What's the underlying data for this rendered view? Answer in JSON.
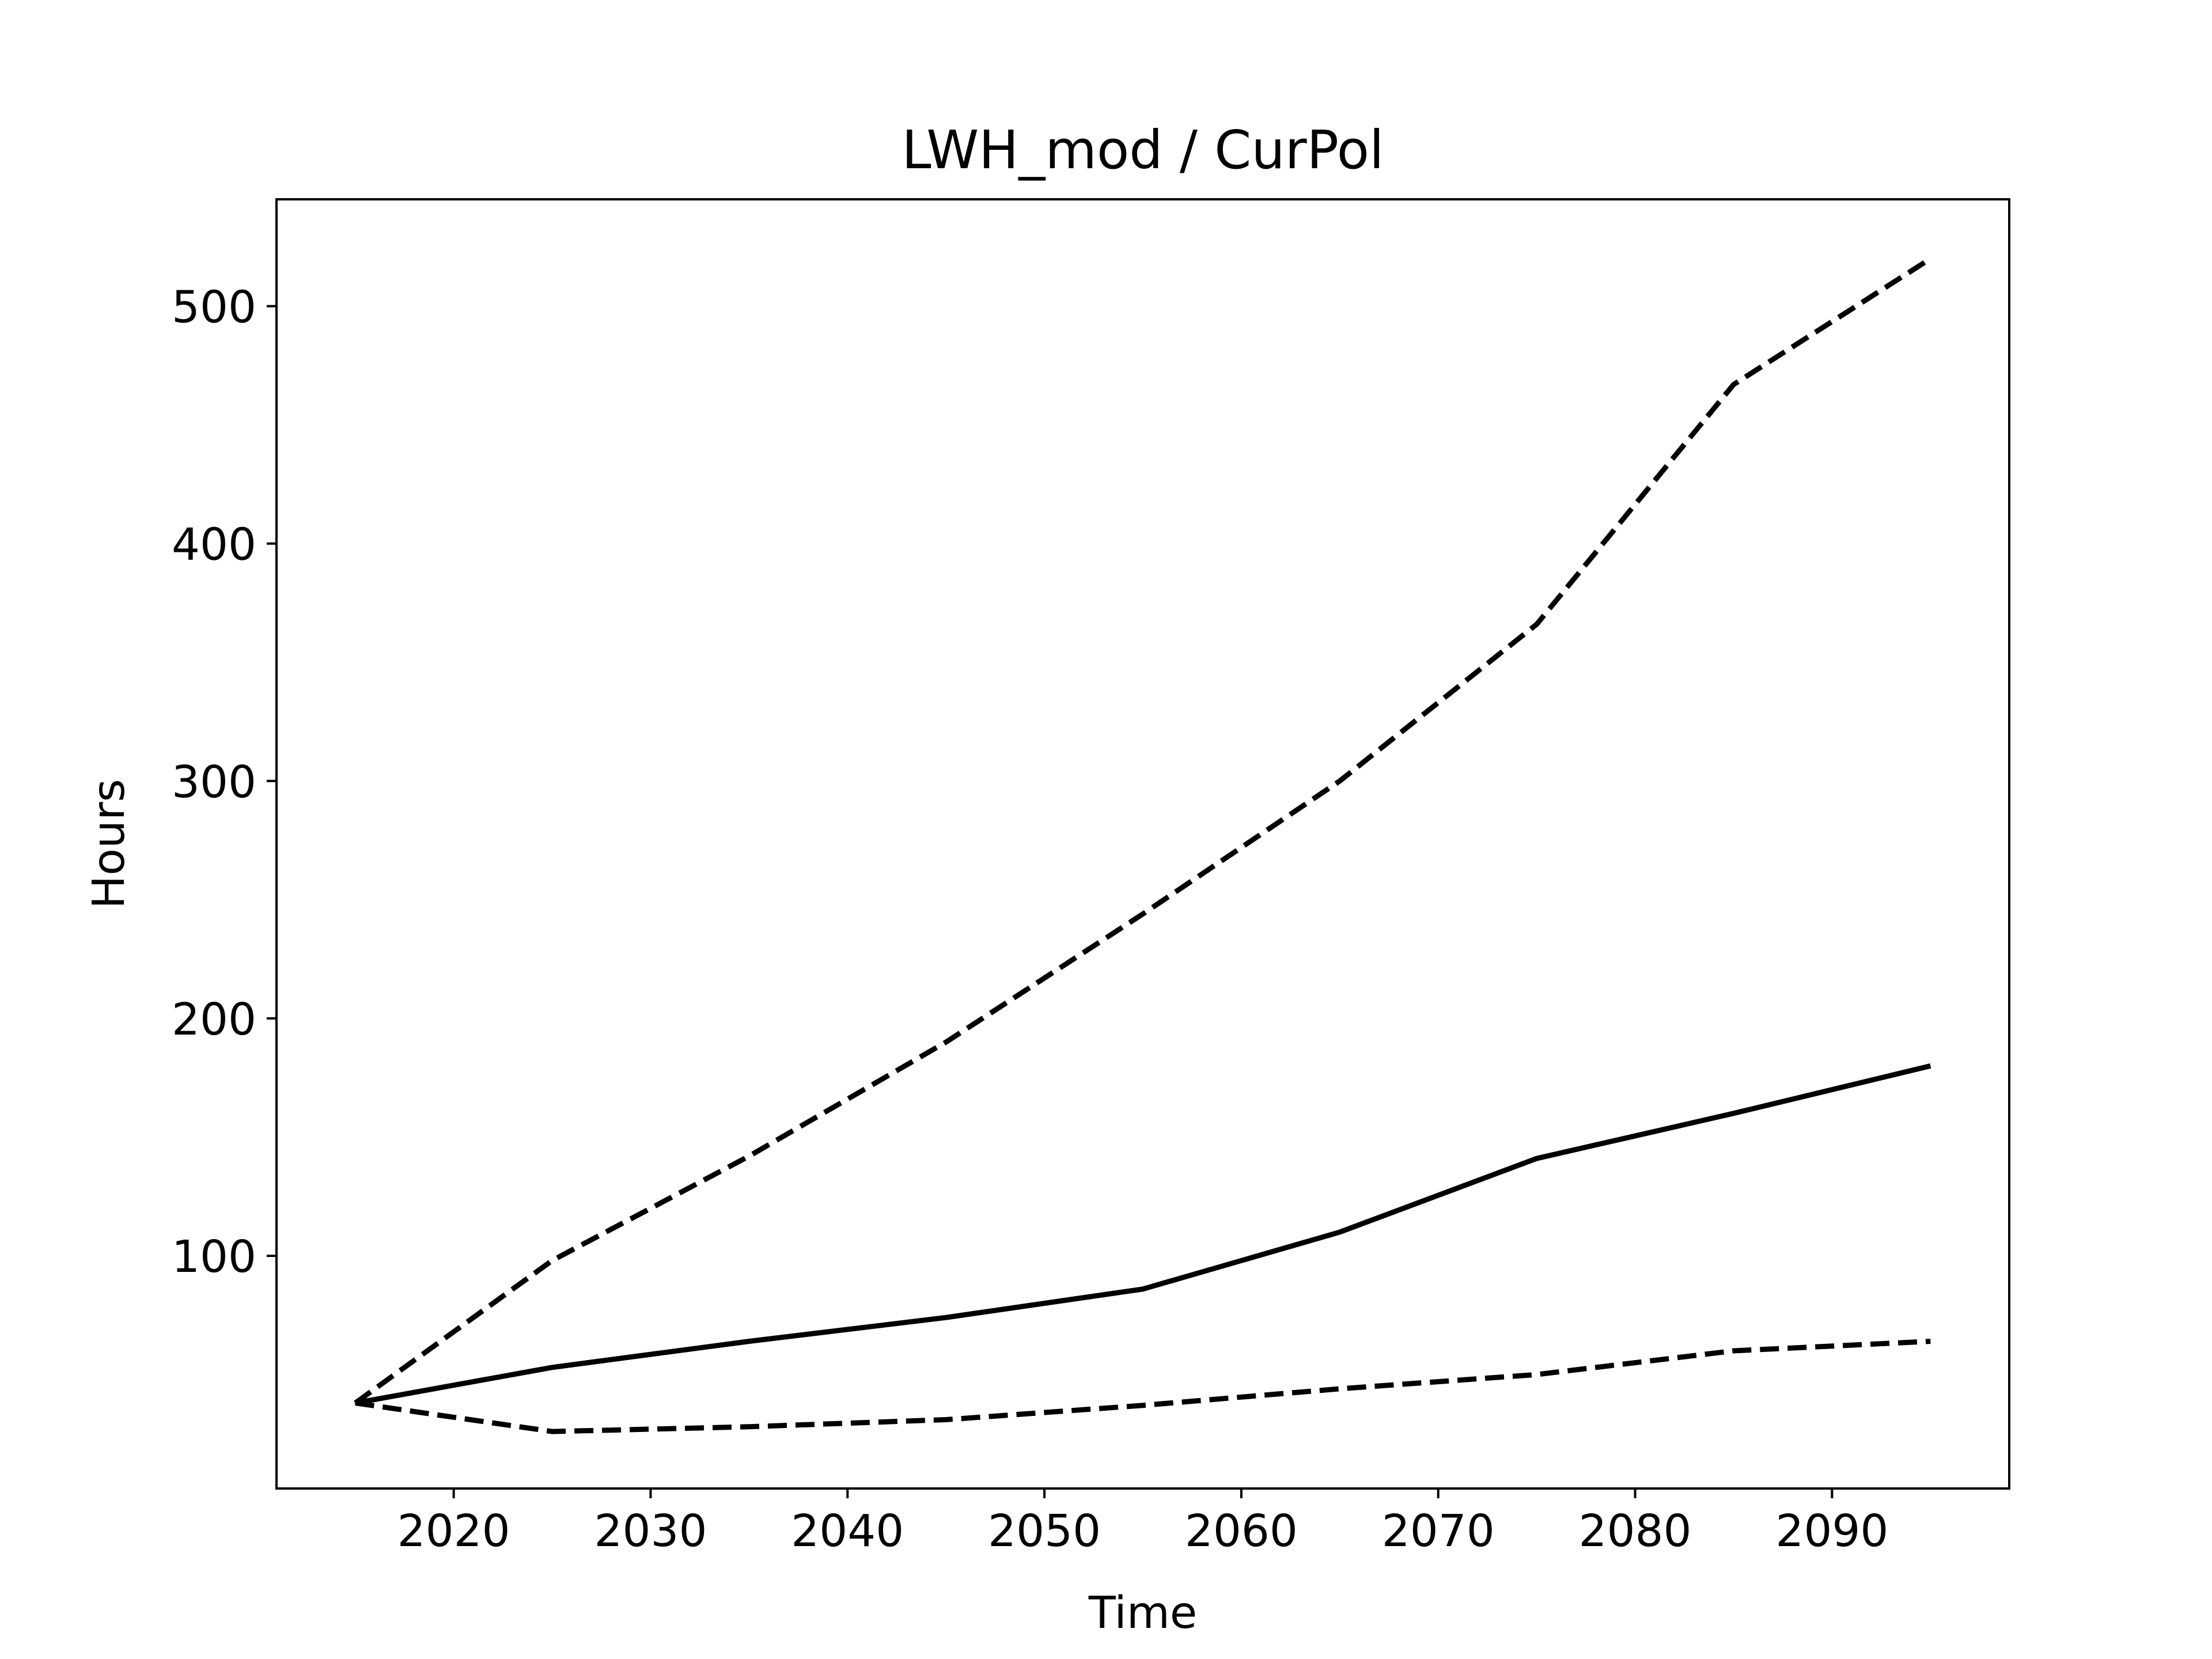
{
  "chart_data": {
    "type": "line",
    "title": "LWH_mod / CurPol",
    "xlabel": "Time",
    "ylabel": "Hours",
    "xlim": [
      2011,
      2099
    ],
    "ylim": [
      2,
      545
    ],
    "grid": false,
    "legend": "none",
    "x": [
      2015,
      2025,
      2035,
      2045,
      2055,
      2065,
      2075,
      2085,
      2095
    ],
    "xticks": [
      2020,
      2030,
      2040,
      2050,
      2060,
      2070,
      2080,
      2090
    ],
    "yticks": [
      100,
      200,
      300,
      400,
      500
    ],
    "series": [
      {
        "style": "dashed",
        "color": "#000000",
        "values": [
          38,
          98,
          142,
          190,
          244,
          300,
          366,
          467,
          520
        ]
      },
      {
        "style": "solid",
        "color": "#000000",
        "values": [
          38,
          53,
          64,
          74,
          86,
          110,
          141,
          160,
          180
        ]
      },
      {
        "style": "dashed",
        "color": "#000000",
        "values": [
          38,
          26,
          28,
          31,
          37,
          44,
          50,
          60,
          64
        ]
      }
    ]
  }
}
